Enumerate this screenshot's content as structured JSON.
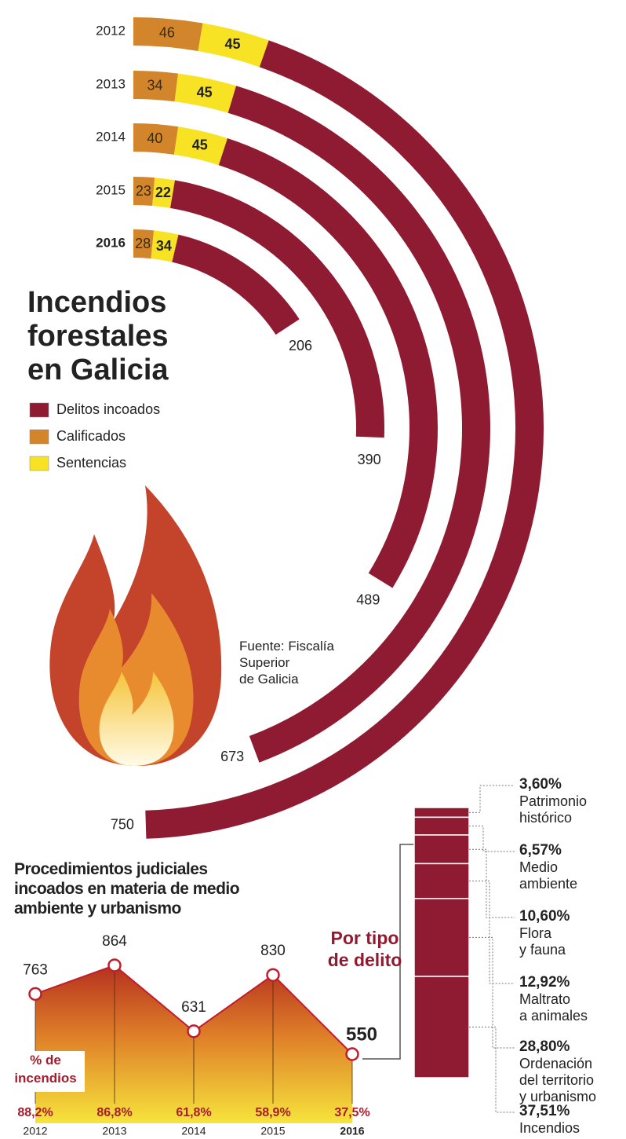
{
  "chart_data": [
    {
      "type": "radial_bar",
      "title": "Incendios\nforestales\nen Galicia",
      "categories": [
        "2012",
        "2013",
        "2014",
        "2015",
        "2016"
      ],
      "series": [
        {
          "name": "Delitos incoados",
          "color": "#8e1b31",
          "values": [
            750,
            673,
            489,
            390,
            206
          ]
        },
        {
          "name": "Calificados",
          "color": "#d3852c",
          "values": [
            46,
            34,
            40,
            23,
            28
          ]
        },
        {
          "name": "Sentencias",
          "color": "#f7e324",
          "values": [
            45,
            45,
            45,
            22,
            34
          ]
        }
      ],
      "source": "Fuente: Fiscalía\nSuperior\nde Galicia"
    },
    {
      "type": "area",
      "title": "Procedimientos judiciales\nincoados en materia de medio\nambiente y urbanismo",
      "categories": [
        "2012",
        "2013",
        "2014",
        "2015",
        "2016"
      ],
      "values": [
        763,
        864,
        631,
        830,
        550
      ],
      "color": "#c21d2b",
      "pct_title": "% de\nincendios",
      "pct_values": [
        88.2,
        86.8,
        61.8,
        58.9,
        37.5
      ],
      "pct_value_labels": [
        "88,2%",
        "86,8%",
        "61,8%",
        "58,9%",
        "37,5%"
      ]
    },
    {
      "type": "stacked_column",
      "title": "Por tipo\nde delito",
      "color": "#8e1b31",
      "categories": [
        "Patrimonio\nhistórico",
        "Medio\nambiente",
        "Flora\ny fauna",
        "Maltrato\na animales",
        "Ordenación\ndel territorio\ny urbanismo",
        "Incendios"
      ],
      "values": [
        3.6,
        6.57,
        10.6,
        12.92,
        28.8,
        37.51
      ],
      "value_labels": [
        "3,60%",
        "6,57%",
        "10,60%",
        "12,92%",
        "28,80%",
        "37,51%"
      ]
    }
  ]
}
